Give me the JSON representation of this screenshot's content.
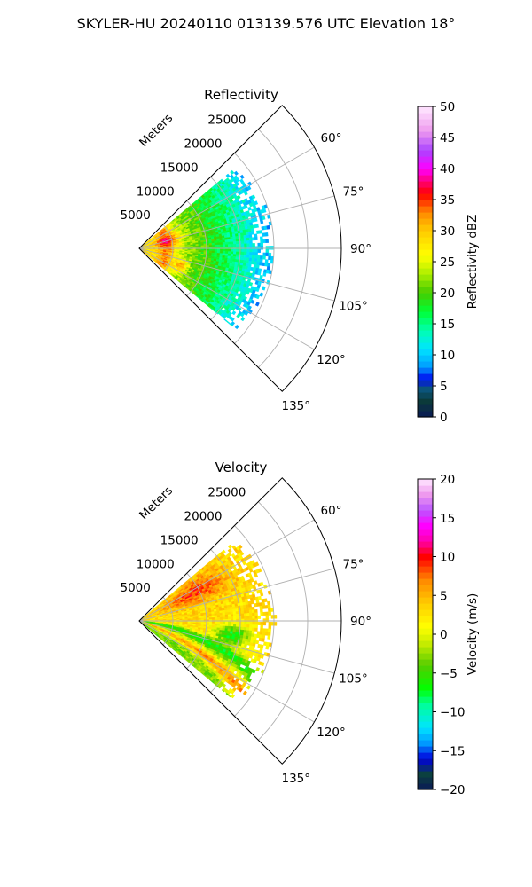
{
  "figure": {
    "title": "SKYLER-HU  20240110  013139.576 UTC Elevation 18°"
  },
  "chart_data": [
    {
      "type": "polar-sector",
      "title": "Reflectivity",
      "range_unit_label": "Meters",
      "range_ticks": [
        5000,
        10000,
        15000,
        20000,
        25000
      ],
      "range_tick_labels": [
        "5000",
        "10000",
        "15000",
        "20000",
        "25000"
      ],
      "rlim": [
        0,
        30000
      ],
      "azimuth_range_deg": [
        45,
        135
      ],
      "azimuth_ticks_deg": [
        60,
        75,
        90,
        105,
        120,
        135
      ],
      "azimuth_tick_labels": [
        "60°",
        "75°",
        "90°",
        "105°",
        "120°",
        "135°"
      ],
      "grid": true,
      "data_coverage_max_range_m": [
        17500,
        19500
      ],
      "colorbar": {
        "label": "Reflectivity dBZ",
        "range": [
          0,
          50
        ],
        "ticks": [
          0,
          5,
          10,
          15,
          20,
          25,
          30,
          35,
          40,
          45,
          50
        ],
        "tick_labels": [
          "0",
          "5",
          "10",
          "15",
          "20",
          "25",
          "30",
          "35",
          "40",
          "45",
          "50"
        ],
        "stops": [
          {
            "value": 0,
            "color": "#0a1a55"
          },
          {
            "value": 2.5,
            "color": "#0b3a3a"
          },
          {
            "value": 5,
            "color": "#0b5a8a"
          },
          {
            "value": 6,
            "color": "#0000ee"
          },
          {
            "value": 8,
            "color": "#0099ff"
          },
          {
            "value": 11,
            "color": "#00e5ff"
          },
          {
            "value": 14,
            "color": "#00ffb0"
          },
          {
            "value": 17,
            "color": "#00ff33"
          },
          {
            "value": 20,
            "color": "#44cc00"
          },
          {
            "value": 23,
            "color": "#aaee00"
          },
          {
            "value": 26,
            "color": "#ffff00"
          },
          {
            "value": 30,
            "color": "#ffcc00"
          },
          {
            "value": 33,
            "color": "#ff8800"
          },
          {
            "value": 36,
            "color": "#ff0000"
          },
          {
            "value": 38,
            "color": "#ff0077"
          },
          {
            "value": 40,
            "color": "#ff00ff"
          },
          {
            "value": 43,
            "color": "#aa44ff"
          },
          {
            "value": 46,
            "color": "#ee99ee"
          },
          {
            "value": 50,
            "color": "#ffe8ff"
          }
        ]
      }
    },
    {
      "type": "polar-sector",
      "title": "Velocity",
      "range_unit_label": "Meters",
      "range_ticks": [
        5000,
        10000,
        15000,
        20000,
        25000
      ],
      "range_tick_labels": [
        "5000",
        "10000",
        "15000",
        "20000",
        "25000"
      ],
      "rlim": [
        0,
        30000
      ],
      "azimuth_range_deg": [
        45,
        135
      ],
      "azimuth_ticks_deg": [
        60,
        75,
        90,
        105,
        120,
        135
      ],
      "azimuth_tick_labels": [
        "60°",
        "75°",
        "90°",
        "105°",
        "120°",
        "135°"
      ],
      "grid": true,
      "data_coverage_max_range_m": [
        17500,
        19500
      ],
      "colorbar": {
        "label": "Velocity (m/s)",
        "range": [
          -20,
          20
        ],
        "ticks": [
          -20,
          -15,
          -10,
          -5,
          0,
          5,
          10,
          15,
          20
        ],
        "tick_labels": [
          "−20",
          "−15",
          "−10",
          "−5",
          "0",
          "5",
          "10",
          "15",
          "20"
        ],
        "stops": [
          {
            "value": -20,
            "color": "#0a1a55"
          },
          {
            "value": -18,
            "color": "#0b4040"
          },
          {
            "value": -16,
            "color": "#0000dd"
          },
          {
            "value": -14,
            "color": "#0099ff"
          },
          {
            "value": -12,
            "color": "#00e5ff"
          },
          {
            "value": -9,
            "color": "#00ff99"
          },
          {
            "value": -7,
            "color": "#00ff00"
          },
          {
            "value": -4,
            "color": "#55cc00"
          },
          {
            "value": -1,
            "color": "#ccee00"
          },
          {
            "value": 1,
            "color": "#ffff00"
          },
          {
            "value": 4,
            "color": "#ffcc00"
          },
          {
            "value": 7,
            "color": "#ff8800"
          },
          {
            "value": 10,
            "color": "#ff0000"
          },
          {
            "value": 12,
            "color": "#ff00aa"
          },
          {
            "value": 14,
            "color": "#ff00ff"
          },
          {
            "value": 16,
            "color": "#bb55ff"
          },
          {
            "value": 18,
            "color": "#ee99ee"
          },
          {
            "value": 20,
            "color": "#ffe8ff"
          }
        ]
      }
    }
  ]
}
